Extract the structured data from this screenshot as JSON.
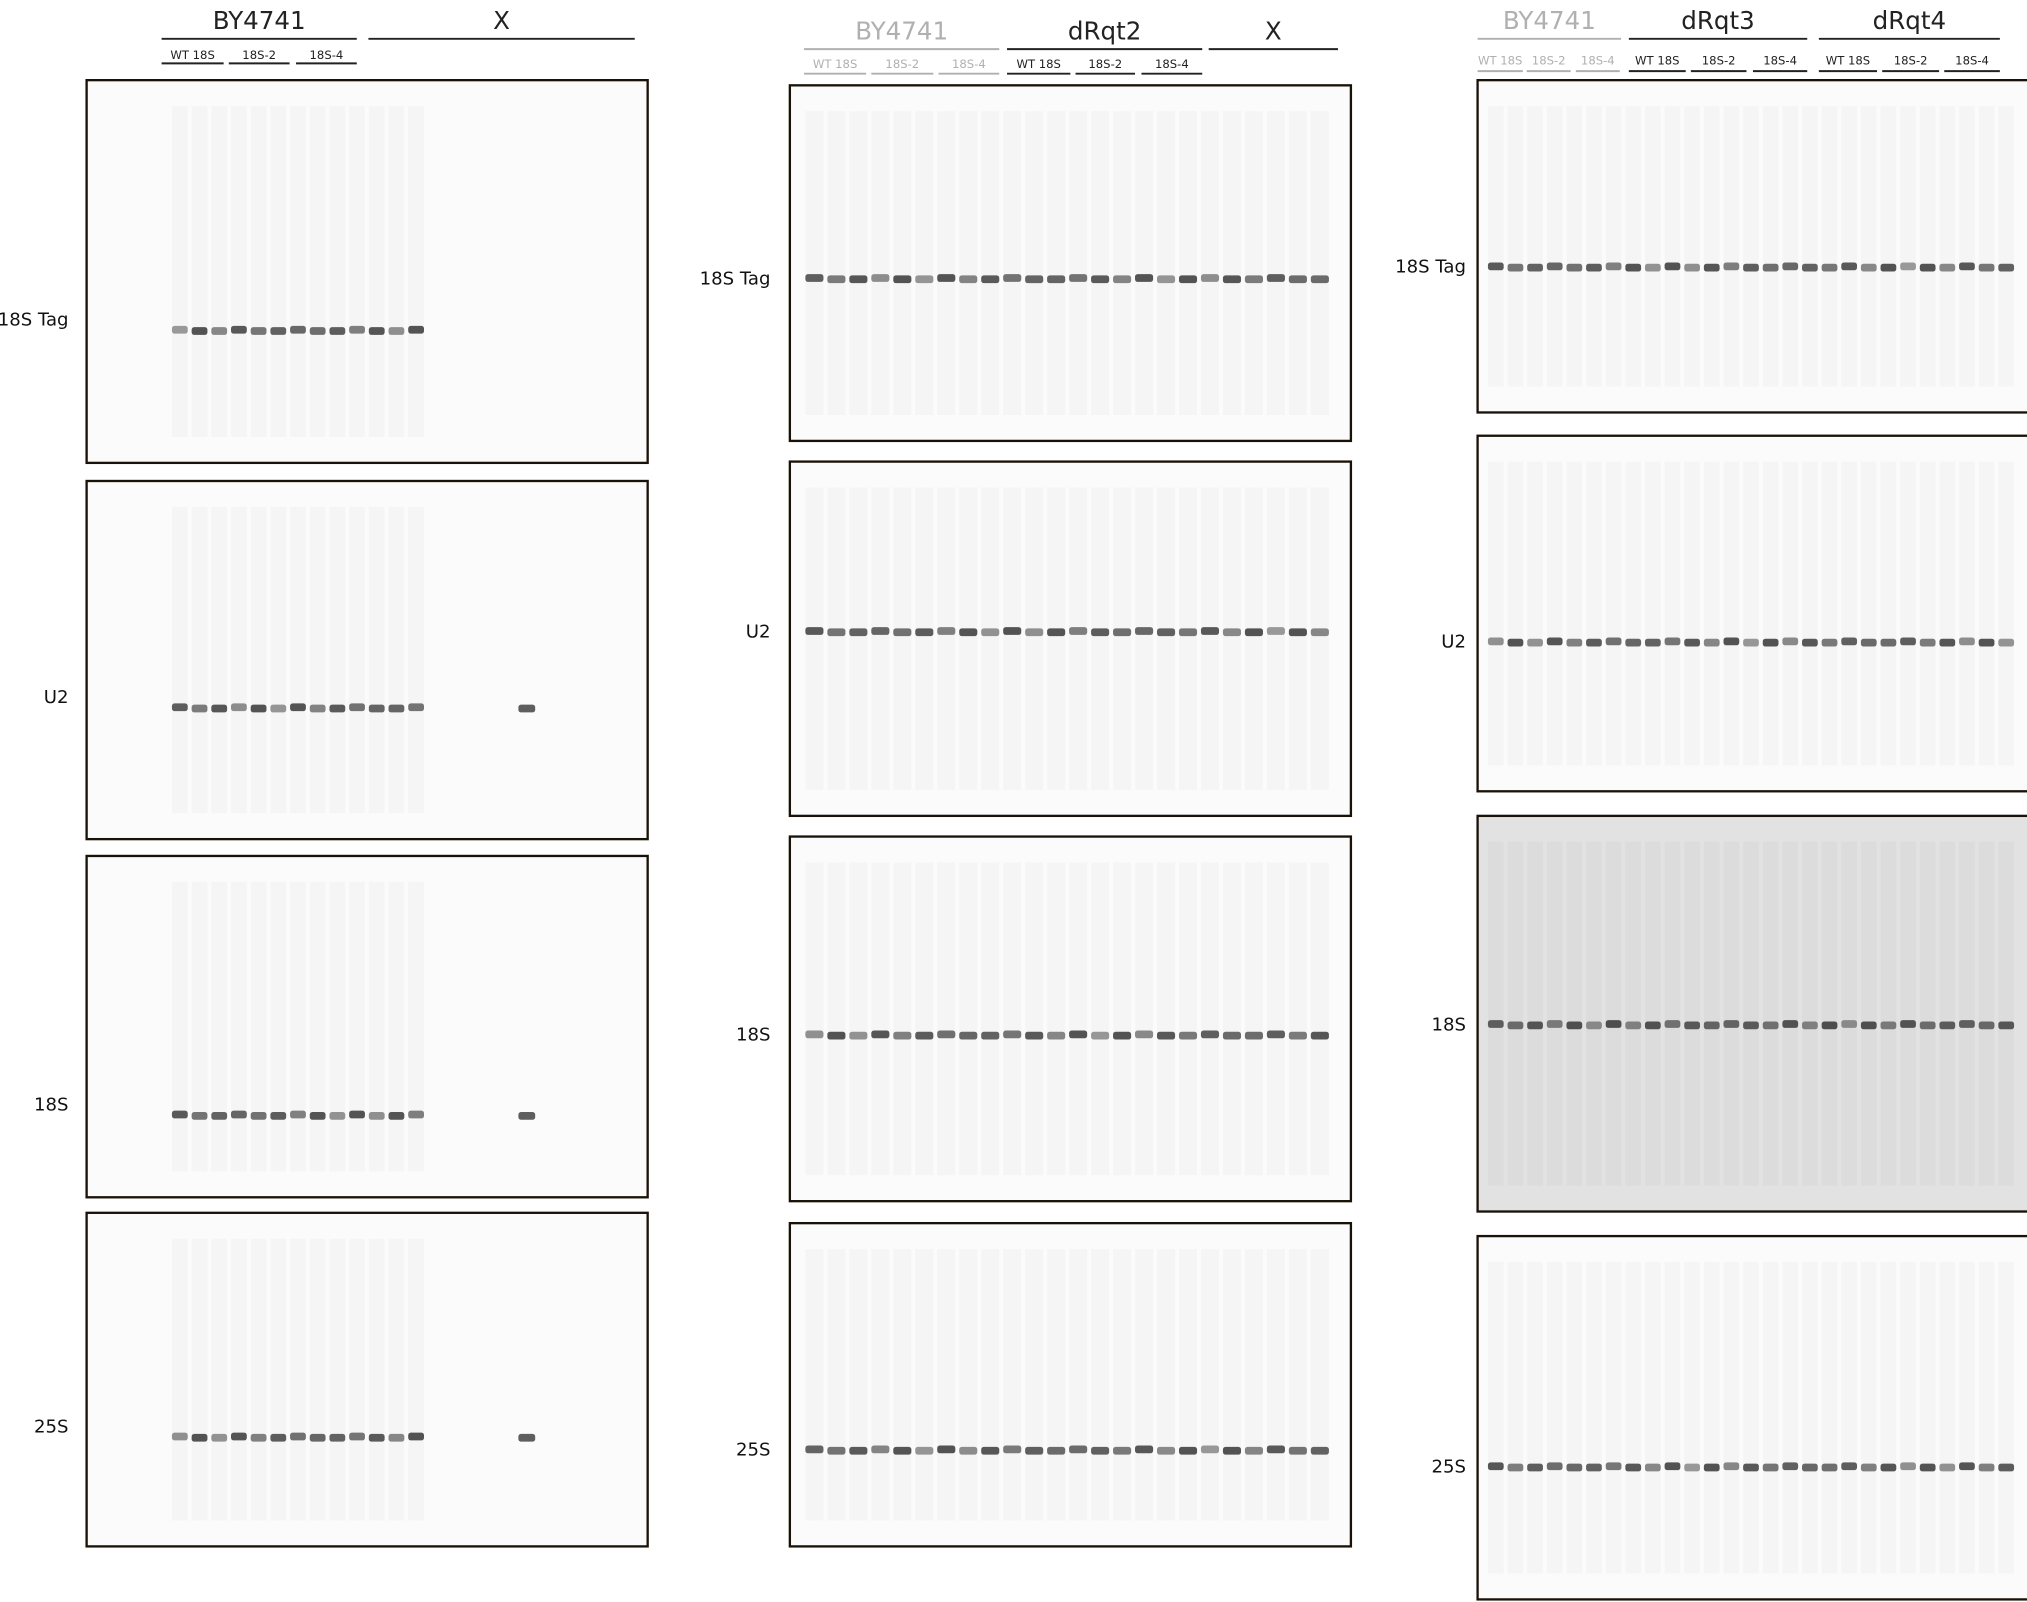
{
  "panels": [
    {
      "groups": [
        {
          "name": "BY4741",
          "color": "#222222",
          "lanes": [
            "WT 18S",
            "18S-2",
            "18S-4"
          ]
        },
        {
          "name": "X",
          "color": "#222222",
          "lanes": []
        }
      ],
      "blots": [
        "18S Tag",
        "U2",
        "18S",
        "25S"
      ]
    },
    {
      "groups": [
        {
          "name": "BY4741",
          "color": "#b0b0b0",
          "lanes": [
            "WT 18S",
            "18S-2",
            "18S-4"
          ]
        },
        {
          "name": "dRqt2",
          "color": "#222222",
          "lanes": [
            "WT 18S",
            "18S-2",
            "18S-4"
          ]
        },
        {
          "name": "X",
          "color": "#222222",
          "lanes": []
        }
      ],
      "blots": [
        "18S Tag",
        "U2",
        "18S",
        "25S"
      ]
    },
    {
      "groups": [
        {
          "name": "BY4741",
          "color": "#b0b0b0",
          "lanes": [
            "WT 18S",
            "18S-2",
            "18S-4"
          ]
        },
        {
          "name": "dRqt3",
          "color": "#222222",
          "lanes": [
            "WT 18S",
            "18S-2",
            "18S-4"
          ]
        },
        {
          "name": "dRqt4",
          "color": "#222222",
          "lanes": [
            "WT 18S",
            "18S-2",
            "18S-4"
          ]
        }
      ],
      "blots": [
        "18S Tag",
        "U2",
        "18S",
        "25S"
      ]
    }
  ]
}
